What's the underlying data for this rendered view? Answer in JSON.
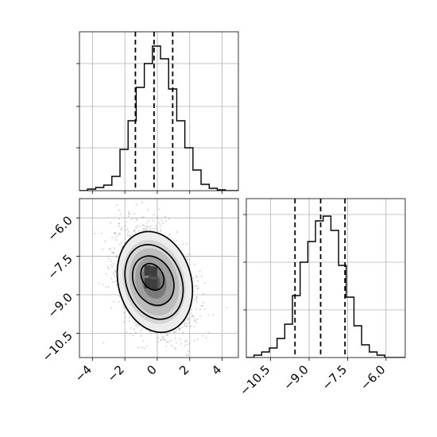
{
  "chart_data": [
    {
      "type": "histogram",
      "panel": "top-left",
      "ytick_labels_hidden": true,
      "grid": true,
      "xlim": [
        -4.8,
        5.0
      ],
      "ylim": [
        0,
        1.0
      ],
      "yticks": [
        0.27,
        0.53,
        0.8
      ],
      "bins": [
        {
          "x0": -4.8,
          "x1": -4.3,
          "count": 0.0
        },
        {
          "x0": -4.3,
          "x1": -3.8,
          "count": 0.01
        },
        {
          "x0": -3.8,
          "x1": -3.3,
          "count": 0.02
        },
        {
          "x0": -3.3,
          "x1": -2.8,
          "count": 0.035
        },
        {
          "x0": -2.8,
          "x1": -2.3,
          "count": 0.09
        },
        {
          "x0": -2.3,
          "x1": -1.8,
          "count": 0.26
        },
        {
          "x0": -1.8,
          "x1": -1.3,
          "count": 0.44
        },
        {
          "x0": -1.3,
          "x1": -0.8,
          "count": 0.65
        },
        {
          "x0": -0.8,
          "x1": -0.3,
          "count": 0.8
        },
        {
          "x0": -0.3,
          "x1": 0.2,
          "count": 0.91
        },
        {
          "x0": 0.2,
          "x1": 0.7,
          "count": 0.83
        },
        {
          "x0": 0.7,
          "x1": 1.2,
          "count": 0.64
        },
        {
          "x0": 1.2,
          "x1": 1.7,
          "count": 0.44
        },
        {
          "x0": 1.7,
          "x1": 2.2,
          "count": 0.27
        },
        {
          "x0": 2.2,
          "x1": 2.7,
          "count": 0.13
        },
        {
          "x0": 2.7,
          "x1": 3.2,
          "count": 0.04
        },
        {
          "x0": 3.2,
          "x1": 3.7,
          "count": 0.015
        },
        {
          "x0": 3.7,
          "x1": 4.2,
          "count": 0.005
        },
        {
          "x0": 4.2,
          "x1": 5.0,
          "count": 0.0
        }
      ],
      "quantile_lines": [
        -1.35,
        -0.2,
        0.95
      ]
    },
    {
      "type": "scatter",
      "panel": "bottom-left",
      "grid": true,
      "xlim": [
        -4.8,
        5.0
      ],
      "ylim": [
        -11.45,
        -5.25
      ],
      "xticks": [
        -4,
        -2,
        0,
        2,
        4
      ],
      "xtick_labels": [
        "−4",
        "−2",
        "0",
        "2",
        "4"
      ],
      "yticks": [
        -6.0,
        -7.5,
        -9.0,
        -10.5
      ],
      "ytick_labels": [
        "−6.0",
        "−7.5",
        "−9.0",
        "−10.5"
      ],
      "density_center": {
        "x": -0.2,
        "y": -8.5
      },
      "contours": [
        {
          "level": 1,
          "cx": -0.3,
          "cy": -8.3,
          "rx": 0.65,
          "ry": 0.55,
          "rotation": -30
        },
        {
          "level": 2,
          "cx": -0.25,
          "cy": -8.45,
          "rx": 1.2,
          "ry": 1.0,
          "rotation": -25
        },
        {
          "level": 3,
          "cx": -0.2,
          "cy": -8.5,
          "rx": 1.7,
          "ry": 1.5,
          "rotation": -20
        },
        {
          "level": 4,
          "cx": -0.15,
          "cy": -8.5,
          "rx": 2.25,
          "ry": 2.0,
          "rotation": -15
        }
      ]
    },
    {
      "type": "histogram",
      "panel": "bottom-right",
      "ytick_labels_hidden": true,
      "grid": true,
      "xlim": [
        -11.45,
        -5.25
      ],
      "ylim": [
        0,
        1.0
      ],
      "xticks": [
        -10.5,
        -9.0,
        -7.5,
        -6.0
      ],
      "xtick_labels": [
        "−10.5",
        "−9.0",
        "−7.5",
        "−6.0"
      ],
      "yticks": [
        0.3,
        0.6,
        0.9
      ],
      "bins": [
        {
          "x0": -11.45,
          "x1": -11.15,
          "count": 0.0
        },
        {
          "x0": -11.15,
          "x1": -10.85,
          "count": 0.015
        },
        {
          "x0": -10.85,
          "x1": -10.55,
          "count": 0.035
        },
        {
          "x0": -10.55,
          "x1": -10.25,
          "count": 0.06
        },
        {
          "x0": -10.25,
          "x1": -9.95,
          "count": 0.12
        },
        {
          "x0": -9.95,
          "x1": -9.65,
          "count": 0.21
        },
        {
          "x0": -9.65,
          "x1": -9.35,
          "count": 0.39
        },
        {
          "x0": -9.35,
          "x1": -9.05,
          "count": 0.6
        },
        {
          "x0": -9.05,
          "x1": -8.75,
          "count": 0.73
        },
        {
          "x0": -8.75,
          "x1": -8.45,
          "count": 0.86
        },
        {
          "x0": -8.45,
          "x1": -8.15,
          "count": 0.89
        },
        {
          "x0": -8.15,
          "x1": -7.85,
          "count": 0.8
        },
        {
          "x0": -7.85,
          "x1": -7.55,
          "count": 0.58
        },
        {
          "x0": -7.55,
          "x1": -7.25,
          "count": 0.38
        },
        {
          "x0": -7.25,
          "x1": -6.95,
          "count": 0.2
        },
        {
          "x0": -6.95,
          "x1": -6.65,
          "count": 0.08
        },
        {
          "x0": -6.65,
          "x1": -6.35,
          "count": 0.035
        },
        {
          "x0": -6.35,
          "x1": -6.05,
          "count": 0.015
        },
        {
          "x0": -6.05,
          "x1": -5.25,
          "count": 0.0
        }
      ],
      "quantile_lines": [
        -9.55,
        -8.55,
        -7.6
      ]
    }
  ]
}
